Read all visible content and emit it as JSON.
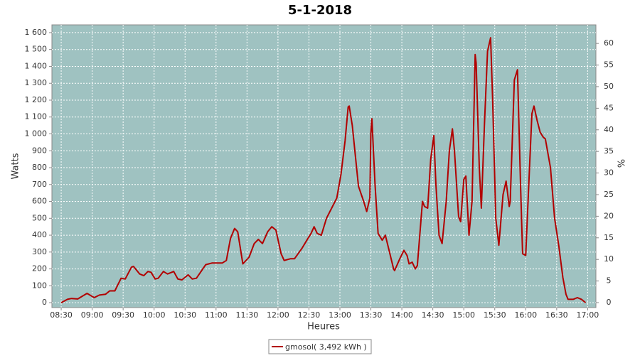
{
  "chart_data": {
    "type": "line",
    "title": "5-1-2018",
    "xlabel": "Heures",
    "ylabel": "Watts",
    "y2label": "%",
    "x": [
      510,
      516,
      520,
      526,
      535,
      542,
      547,
      553,
      557,
      562,
      568,
      572,
      578,
      580,
      586,
      590,
      594,
      597,
      601,
      604,
      609,
      613,
      619,
      623,
      627,
      633,
      637,
      641,
      650,
      656,
      666,
      670,
      674,
      678,
      681,
      686,
      692,
      697,
      701,
      705,
      710,
      714,
      718,
      723,
      726,
      732,
      736,
      743,
      748,
      752,
      755,
      758,
      762,
      767,
      772,
      777,
      781,
      785,
      788,
      789,
      792,
      798,
      803,
      806,
      809,
      810,
      811,
      814,
      817,
      821,
      824,
      828,
      832,
      833,
      838,
      842,
      845,
      847,
      850,
      853,
      855,
      860,
      862,
      865,
      868,
      871,
      873,
      876,
      879,
      883,
      886,
      889,
      891,
      895,
      897,
      900,
      902,
      905,
      908,
      911,
      912,
      915,
      917,
      920,
      923,
      926,
      928,
      931,
      934,
      938,
      941,
      944,
      945,
      949,
      952,
      955,
      957,
      960,
      963,
      966,
      968,
      971,
      974,
      977,
      979,
      984,
      988,
      992,
      996,
      999,
      1001,
      1006,
      1010,
      1014,
      1018
    ],
    "series": [
      {
        "name": "gmosol( 3,492 kWh )",
        "color": "#b20000",
        "values": [
          0,
          20,
          25,
          22,
          55,
          30,
          45,
          50,
          70,
          70,
          145,
          140,
          210,
          215,
          170,
          160,
          185,
          180,
          140,
          145,
          185,
          170,
          185,
          140,
          135,
          165,
          140,
          145,
          225,
          235,
          235,
          250,
          380,
          440,
          420,
          230,
          270,
          350,
          375,
          350,
          420,
          450,
          430,
          290,
          250,
          260,
          260,
          320,
          370,
          410,
          450,
          410,
          400,
          500,
          560,
          620,
          760,
          960,
          1160,
          1165,
          1050,
          690,
          600,
          540,
          620,
          1000,
          1090,
          700,
          410,
          370,
          400,
          300,
          200,
          190,
          260,
          310,
          280,
          230,
          240,
          200,
          220,
          600,
          570,
          560,
          850,
          990,
          700,
          400,
          350,
          600,
          900,
          1030,
          900,
          510,
          480,
          730,
          750,
          400,
          600,
          1470,
          1420,
          800,
          560,
          1050,
          1490,
          1570,
          1200,
          500,
          340,
          640,
          720,
          570,
          600,
          1320,
          1380,
          700,
          290,
          280,
          700,
          1120,
          1165,
          1080,
          1010,
          980,
          970,
          800,
          500,
          340,
          150,
          50,
          20,
          20,
          30,
          20,
          0
        ]
      }
    ],
    "xlim": [
      501,
      1028
    ],
    "xticks": [
      {
        "value": 510,
        "label": "08:30"
      },
      {
        "value": 540,
        "label": "09:00"
      },
      {
        "value": 570,
        "label": "09:30"
      },
      {
        "value": 600,
        "label": "10:00"
      },
      {
        "value": 630,
        "label": "10:30"
      },
      {
        "value": 660,
        "label": "11:00"
      },
      {
        "value": 690,
        "label": "11:30"
      },
      {
        "value": 720,
        "label": "12:00"
      },
      {
        "value": 750,
        "label": "12:30"
      },
      {
        "value": 780,
        "label": "13:00"
      },
      {
        "value": 810,
        "label": "13:30"
      },
      {
        "value": 840,
        "label": "14:00"
      },
      {
        "value": 870,
        "label": "14:30"
      },
      {
        "value": 900,
        "label": "15:00"
      },
      {
        "value": 930,
        "label": "15:30"
      },
      {
        "value": 960,
        "label": "16:00"
      },
      {
        "value": 990,
        "label": "16:30"
      },
      {
        "value": 1020,
        "label": "17:00"
      }
    ],
    "ylim": [
      -29,
      1646
    ],
    "yticks": [
      0,
      100,
      200,
      300,
      400,
      500,
      600,
      700,
      800,
      900,
      {
        "value": 1000,
        "label": "1 000"
      },
      {
        "value": 1100,
        "label": "1 100"
      },
      {
        "value": 1200,
        "label": "1 200"
      },
      {
        "value": 1300,
        "label": "1 300"
      },
      {
        "value": 1400,
        "label": "1 400"
      },
      {
        "value": 1500,
        "label": "1 500"
      },
      {
        "value": 1600,
        "label": "1 600"
      }
    ],
    "y2lim": [
      -1.15,
      64.3
    ],
    "y2ticks": [
      0,
      5,
      10,
      15,
      20,
      25,
      30,
      35,
      40,
      45,
      50,
      55,
      60
    ],
    "grid": true
  }
}
